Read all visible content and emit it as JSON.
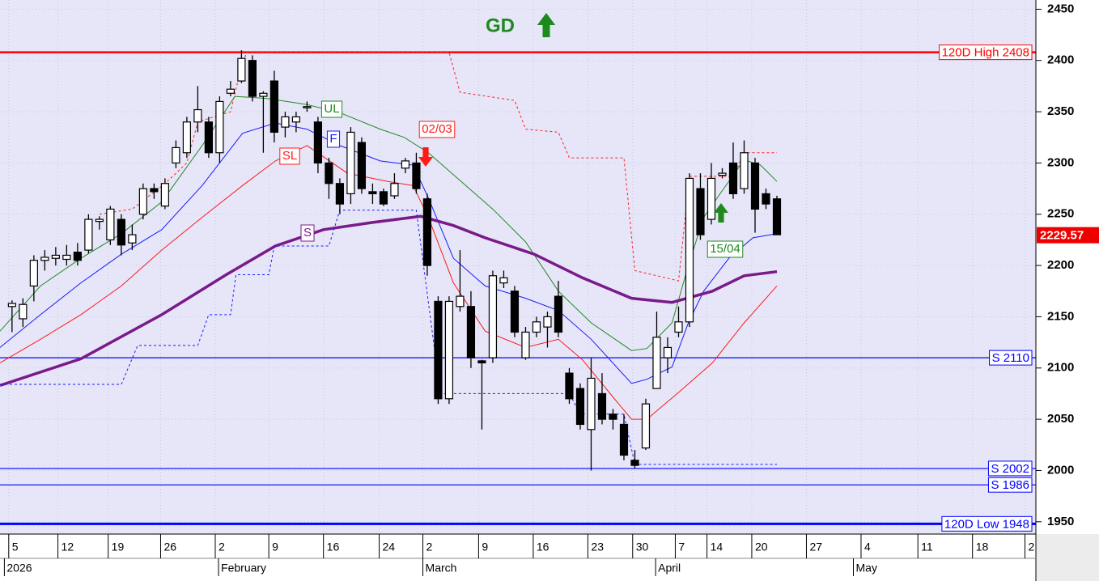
{
  "chart_data": {
    "type": "candlestick",
    "open": [
      2160,
      2148,
      2180,
      2205,
      2207,
      2206,
      2213,
      2215,
      2243,
      2225,
      2245,
      2222,
      2250,
      2275,
      2258,
      2300,
      2310,
      2340,
      2340,
      2310,
      2368,
      2380,
      2400,
      2365,
      2380,
      2335,
      2340,
      2355,
      2340,
      2300,
      2280,
      2270,
      2320,
      2272,
      2272,
      2268,
      2295,
      2300,
      2265,
      2165,
      2070,
      2160,
      2160,
      2107,
      2110,
      2183,
      2175,
      2110,
      2135,
      2140,
      2170,
      2095,
      2080,
      2040,
      2075,
      2055,
      2045,
      2010,
      2022,
      2080,
      2110,
      2135,
      2145,
      2275,
      2245,
      2288,
      2300,
      2275,
      2300,
      2270,
      2265
    ],
    "high": [
      2166,
      2168,
      2210,
      2215,
      2218,
      2220,
      2222,
      2250,
      2248,
      2258,
      2250,
      2240,
      2280,
      2280,
      2285,
      2322,
      2345,
      2375,
      2345,
      2365,
      2380,
      2410,
      2405,
      2370,
      2390,
      2350,
      2350,
      2360,
      2345,
      2305,
      2285,
      2335,
      2325,
      2280,
      2275,
      2290,
      2305,
      2310,
      2270,
      2170,
      2170,
      2215,
      2175,
      2108,
      2195,
      2195,
      2180,
      2140,
      2150,
      2155,
      2185,
      2100,
      2085,
      2110,
      2095,
      2060,
      2055,
      2020,
      2070,
      2155,
      2130,
      2160,
      2290,
      2290,
      2300,
      2295,
      2320,
      2322,
      2305,
      2275,
      2268
    ],
    "low": [
      2135,
      2140,
      2165,
      2195,
      2200,
      2200,
      2200,
      2212,
      2235,
      2220,
      2210,
      2215,
      2245,
      2265,
      2255,
      2295,
      2305,
      2330,
      2305,
      2300,
      2365,
      2378,
      2360,
      2310,
      2320,
      2325,
      2330,
      2350,
      2290,
      2265,
      2250,
      2260,
      2270,
      2260,
      2258,
      2265,
      2290,
      2270,
      2190,
      2065,
      2065,
      2155,
      2100,
      2040,
      2105,
      2178,
      2130,
      2108,
      2130,
      2120,
      2130,
      2065,
      2040,
      2000,
      2045,
      2040,
      2010,
      2002,
      2020,
      2080,
      2095,
      2130,
      2140,
      2225,
      2240,
      2285,
      2265,
      2270,
      2232,
      2255,
      2230
    ],
    "close": [
      2163,
      2162,
      2205,
      2208,
      2210,
      2210,
      2205,
      2245,
      2245,
      2255,
      2220,
      2230,
      2275,
      2272,
      2280,
      2315,
      2340,
      2352,
      2310,
      2360,
      2372,
      2402,
      2365,
      2368,
      2330,
      2345,
      2345,
      2355,
      2300,
      2280,
      2260,
      2330,
      2275,
      2270,
      2260,
      2280,
      2302,
      2275,
      2200,
      2070,
      2165,
      2170,
      2110,
      2105,
      2190,
      2188,
      2135,
      2135,
      2145,
      2150,
      2135,
      2070,
      2045,
      2090,
      2050,
      2050,
      2015,
      2005,
      2065,
      2130,
      2120,
      2145,
      2285,
      2230,
      2285,
      2290,
      2270,
      2310,
      2255,
      2260,
      2230
    ],
    "up_color": "#ffffff",
    "down_color": "#000000",
    "xlim": [
      -1.1,
      93.7
    ],
    "ylim": [
      1938,
      2459
    ],
    "yticks": [
      1950,
      2000,
      2050,
      2100,
      2150,
      2200,
      2250,
      2300,
      2350,
      2400,
      2450
    ],
    "grid": true,
    "xticks": [
      {
        "value": -0.3,
        "label": "5"
      },
      {
        "value": 4.2,
        "label": "12"
      },
      {
        "value": 8.8,
        "label": "19"
      },
      {
        "value": 13.6,
        "label": "26"
      },
      {
        "value": 18.6,
        "label": "2"
      },
      {
        "value": 23.5,
        "label": "9"
      },
      {
        "value": 28.5,
        "label": "16"
      },
      {
        "value": 33.6,
        "label": "24"
      },
      {
        "value": 37.6,
        "label": "2"
      },
      {
        "value": 42.7,
        "label": "9"
      },
      {
        "value": 47.7,
        "label": "16"
      },
      {
        "value": 52.7,
        "label": "23"
      },
      {
        "value": 56.8,
        "label": "30"
      },
      {
        "value": 60.7,
        "label": "7"
      },
      {
        "value": 63.6,
        "label": "14"
      },
      {
        "value": 67.7,
        "label": "20"
      },
      {
        "value": 72.7,
        "label": "27"
      },
      {
        "value": 77.7,
        "label": "4"
      },
      {
        "value": 82.9,
        "label": "11"
      },
      {
        "value": 87.9,
        "label": "18"
      },
      {
        "value": 92.7,
        "label": "2"
      }
    ],
    "month_ticks": [
      {
        "value": -0.7,
        "label": "2026"
      },
      {
        "value": 18.9,
        "label": "February"
      },
      {
        "value": 37.6,
        "label": "March"
      },
      {
        "value": 58.9,
        "label": "April"
      },
      {
        "value": 77.0,
        "label": "May"
      }
    ],
    "lines": [
      {
        "name": "UL",
        "color": "#1e8a1e",
        "width": 1,
        "x": [
          -1.1,
          2.6,
          6.3,
          10,
          13.7,
          17.4,
          20.4,
          23.3,
          27,
          30,
          33.7,
          35.9,
          38.1,
          41.1,
          44.1,
          47,
          50,
          53,
          56.7,
          58.1,
          60.4,
          61.9,
          63.3,
          64.8,
          67,
          68.5,
          70
        ],
        "values": [
          2136,
          2180,
          2207,
          2231,
          2262,
          2317,
          2365,
          2363,
          2357,
          2349,
          2333,
          2325,
          2310,
          2282,
          2254,
          2223,
          2175,
          2144,
          2117,
          2119,
          2144,
          2200,
          2247,
          2270,
          2303,
          2298,
          2282
        ]
      },
      {
        "name": "F",
        "color": "#1a1aff",
        "width": 1,
        "x": [
          -1.1,
          2.6,
          6.3,
          10,
          13.7,
          17.4,
          21.1,
          24.1,
          27,
          30,
          33.7,
          36.7,
          38.1,
          40.4,
          43.3,
          47,
          50,
          53,
          56.7,
          58.1,
          60.4,
          61.9,
          63.3,
          65.6,
          67.8,
          70
        ],
        "values": [
          2120,
          2152,
          2183,
          2211,
          2235,
          2278,
          2329,
          2339,
          2333,
          2317,
          2302,
          2298,
          2266,
          2207,
          2180,
          2168,
          2156,
          2128,
          2085,
          2089,
          2101,
          2144,
          2175,
          2207,
          2227,
          2231
        ]
      },
      {
        "name": "SL",
        "color": "#ff1a1a",
        "width": 1,
        "x": [
          -1.1,
          2.6,
          6.3,
          10,
          13.7,
          17.4,
          21.1,
          24.1,
          27,
          30.7,
          34.4,
          36.7,
          38.1,
          40.4,
          43.3,
          47,
          50,
          52.2,
          55.2,
          56.7,
          58.1,
          61.1,
          64.1,
          67,
          70
        ],
        "values": [
          2105,
          2128,
          2152,
          2180,
          2215,
          2247,
          2278,
          2302,
          2317,
          2290,
          2282,
          2278,
          2247,
          2183,
          2136,
          2120,
          2128,
          2108,
          2069,
          2050,
          2050,
          2077,
          2105,
          2144,
          2180
        ]
      },
      {
        "name": "S",
        "color": "#7a1a8a",
        "width": 3.5,
        "x": [
          -1.1,
          6.3,
          13.7,
          19.6,
          24.1,
          28.5,
          33,
          37.4,
          40.4,
          43.3,
          47.8,
          52.2,
          56.7,
          60.4,
          64.1,
          67,
          70
        ],
        "values": [
          2083,
          2109,
          2152,
          2191,
          2219,
          2235,
          2242,
          2248,
          2239,
          2227,
          2211,
          2188,
          2168,
          2164,
          2175,
          2190,
          2194
        ]
      },
      {
        "color": "#ff2020",
        "width": 1,
        "dashed": true,
        "x": [
          8,
          11,
          14,
          16,
          17,
          20,
          21,
          21.5,
          40,
          41,
          46,
          47,
          50,
          51,
          56,
          57,
          61,
          62,
          66,
          67,
          70
        ],
        "values": [
          2250,
          2255,
          2280,
          2300,
          2340,
          2350,
          2395,
          2408,
          2408,
          2369,
          2361,
          2333,
          2330,
          2305,
          2305,
          2195,
          2185,
          2287,
          2287,
          2310,
          2310
        ]
      },
      {
        "color": "#1a1aff",
        "width": 1,
        "dashed": true,
        "x": [
          -1.1,
          10,
          11.5,
          17,
          18,
          20,
          20.5,
          23.5,
          24,
          29,
          30,
          37,
          39.2,
          51,
          52,
          56,
          57,
          70
        ],
        "values": [
          2084,
          2084,
          2122,
          2122,
          2152,
          2152,
          2191,
          2191,
          2219,
          2219,
          2254,
          2254,
          2075,
          2075,
          2055,
          2055,
          2006,
          2006
        ]
      }
    ],
    "levels": [
      {
        "label": "120D High 2408",
        "value": 2408,
        "color": "#ff0000",
        "width": 2.5
      },
      {
        "label": "S 2110",
        "value": 2110,
        "color": "#0000ff",
        "width": 1.2
      },
      {
        "label": "S 2002",
        "value": 2002,
        "color": "#0000ff",
        "width": 1.2
      },
      {
        "label": "S 1986",
        "value": 1986,
        "color": "#0000ff",
        "width": 1.2
      },
      {
        "label": "120D Low 1948",
        "value": 1948,
        "color": "#0000ff",
        "width": 3
      }
    ],
    "annotations": {
      "signal": "GD",
      "sell_date": "02/03",
      "buy_date": "15/04"
    },
    "last_price": 2229.57
  }
}
